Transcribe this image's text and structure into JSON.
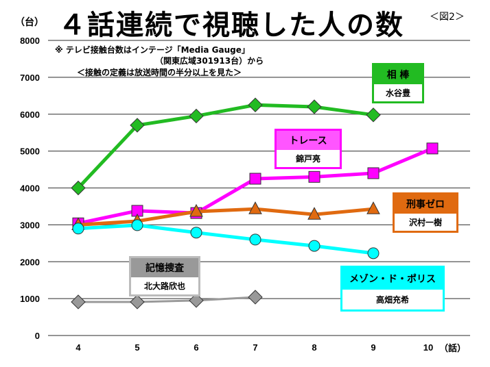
{
  "title": "４話連続で視聴した人の数",
  "figure_label": "＜図2＞",
  "notes": [
    "※ テレビ接触台数はインテージ「Media Gauge」",
    "（関東広域301913台）から",
    "＜接触の定義は放送時間の半分以上を見た＞"
  ],
  "chart_data": {
    "type": "line",
    "title": "４話連続で視聴した人の数",
    "ylabel": "（台）",
    "xlabel": "（話）",
    "x": [
      4,
      5,
      6,
      7,
      8,
      9,
      10
    ],
    "ylim": [
      0,
      8000
    ],
    "yticks": [
      0,
      1000,
      2000,
      3000,
      4000,
      5000,
      6000,
      7000,
      8000
    ],
    "grid": true,
    "series": [
      {
        "name": "相 棒",
        "actor": "水谷豊",
        "color": "#22bb22",
        "marker": "diamond",
        "values": [
          4000,
          5700,
          5950,
          6250,
          6200,
          5980,
          null
        ]
      },
      {
        "name": "トレース",
        "actor": "錦戸亮",
        "color": "#ff00ff",
        "marker": "square",
        "values": [
          3040,
          3380,
          3320,
          4250,
          4300,
          4400,
          5070
        ]
      },
      {
        "name": "刑事ゼロ",
        "actor": "沢村一樹",
        "color": "#e06a10",
        "marker": "triangle",
        "values": [
          3000,
          3100,
          3360,
          3430,
          3280,
          3430,
          null
        ]
      },
      {
        "name": "メゾン・ド・ポリス",
        "actor": "高畑充希",
        "color": "#00ffff",
        "marker": "circle",
        "values": [
          2900,
          2990,
          2790,
          2600,
          2430,
          2230,
          null
        ]
      },
      {
        "name": "記憶捜査",
        "actor": "北大路欣也",
        "color": "#999999",
        "marker": "diamond",
        "values": [
          910,
          910,
          950,
          1040,
          null,
          null,
          null
        ]
      }
    ]
  }
}
